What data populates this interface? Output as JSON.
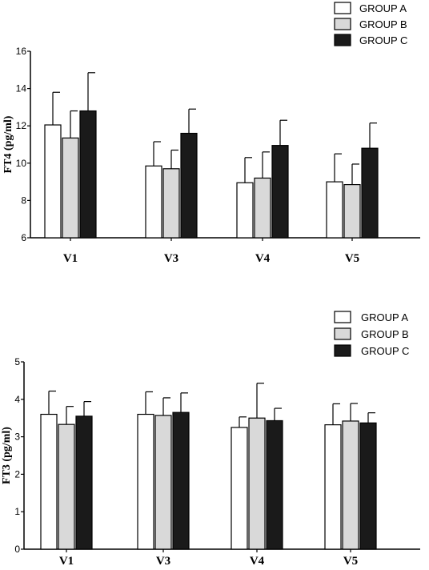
{
  "chart_data": [
    {
      "type": "bar",
      "title": "",
      "xlabel": "",
      "ylabel": "FT4 (pg/ml)",
      "ylim": [
        6,
        16
      ],
      "yticks": [
        6,
        8,
        10,
        12,
        14,
        16
      ],
      "categories": [
        "V1",
        "V3",
        "V4",
        "V5"
      ],
      "legend": "top-right",
      "series": [
        {
          "name": "GROUP A",
          "color": "#ffffff",
          "values": [
            12.05,
            9.85,
            8.95,
            9.0
          ],
          "errors": [
            1.75,
            1.3,
            1.35,
            1.5
          ]
        },
        {
          "name": "GROUP B",
          "color": "#d9d9d9",
          "values": [
            11.35,
            9.7,
            9.2,
            8.85
          ],
          "errors": [
            1.45,
            1.0,
            1.4,
            1.1
          ]
        },
        {
          "name": "GROUP C",
          "color": "#1a1a1a",
          "values": [
            12.8,
            11.6,
            10.95,
            10.8
          ],
          "errors": [
            2.05,
            1.3,
            1.35,
            1.35
          ]
        }
      ]
    },
    {
      "type": "bar",
      "title": "",
      "xlabel": "",
      "ylabel": "FT3 (pg/ml)",
      "ylim": [
        0,
        5
      ],
      "yticks": [
        0,
        1,
        2,
        3,
        4,
        5
      ],
      "categories": [
        "V1",
        "V3",
        "V4",
        "V5"
      ],
      "legend": "top-right",
      "series": [
        {
          "name": "GROUP A",
          "color": "#ffffff",
          "values": [
            3.6,
            3.6,
            3.25,
            3.32
          ],
          "errors": [
            0.62,
            0.6,
            0.28,
            0.56
          ]
        },
        {
          "name": "GROUP B",
          "color": "#d9d9d9",
          "values": [
            3.33,
            3.57,
            3.5,
            3.42
          ],
          "errors": [
            0.48,
            0.47,
            0.93,
            0.47
          ]
        },
        {
          "name": "GROUP C",
          "color": "#1a1a1a",
          "values": [
            3.55,
            3.65,
            3.43,
            3.37
          ],
          "errors": [
            0.39,
            0.52,
            0.33,
            0.27
          ]
        }
      ]
    }
  ]
}
